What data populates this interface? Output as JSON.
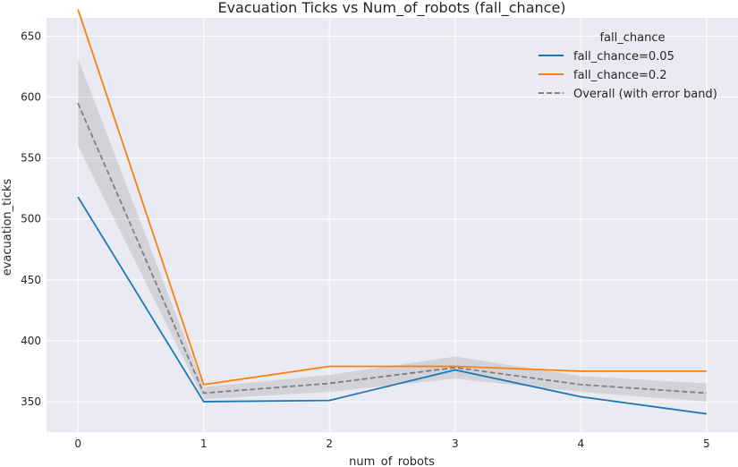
{
  "chart_data": {
    "type": "line",
    "title": "Evacuation Ticks vs Num_of_robots (fall_chance)",
    "xlabel": "num_of_robots",
    "ylabel": "evacuation_ticks",
    "x": [
      0,
      1,
      2,
      3,
      4,
      5
    ],
    "xlim": [
      -0.25,
      5.25
    ],
    "ylim": [
      325,
      665
    ],
    "yticks": [
      350,
      400,
      450,
      500,
      550,
      600,
      650
    ],
    "grid": true,
    "legend": {
      "title": "fall_chance",
      "placement": "top-right"
    },
    "series": [
      {
        "name": "fall_chance=0.05",
        "color": "#1f77b4",
        "style": "solid",
        "values": [
          518,
          350,
          351,
          376,
          354,
          340
        ]
      },
      {
        "name": "fall_chance=0.2",
        "color": "#ff7f0e",
        "style": "solid",
        "values": [
          672,
          364,
          379,
          379,
          375,
          375
        ]
      },
      {
        "name": "Overall (with error band)",
        "color": "#808080",
        "style": "dashed",
        "values": [
          595,
          357,
          365,
          378,
          364,
          357
        ],
        "band_lower": [
          560,
          352,
          358,
          369,
          358,
          350
        ],
        "band_upper": [
          632,
          362,
          372,
          387,
          371,
          365
        ]
      }
    ]
  }
}
